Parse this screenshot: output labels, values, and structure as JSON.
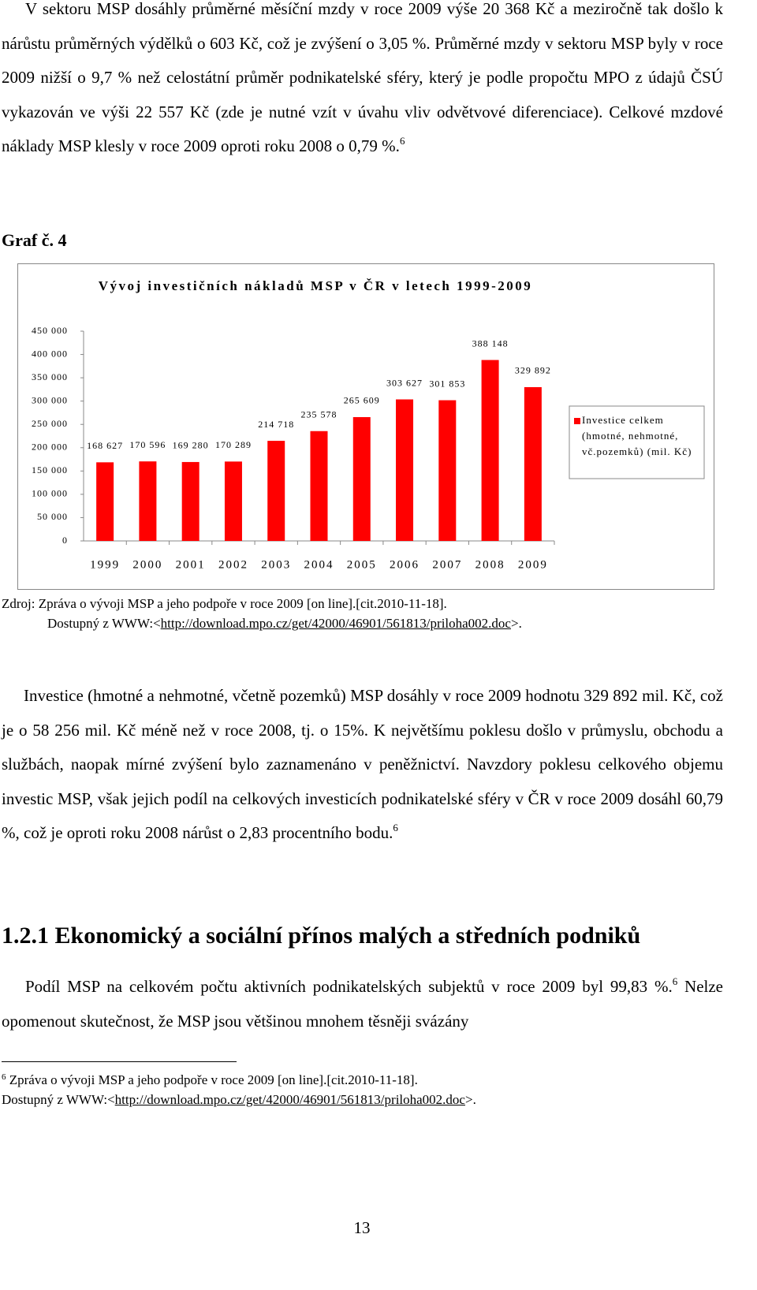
{
  "p1": {
    "text": "V sektoru MSP dosáhly průměrné měsíční mzdy v roce 2009 výše 20 368 Kč a meziročně tak došlo k nárůstu průměrných výdělků o 603 Kč, což je zvýšení o 3,05 %. Průměrné mzdy v sektoru MSP byly v roce 2009 nižší o 9,7 % než celostátní průměr podnikatelské sféry, který je podle propočtu MPO z údajů ČSÚ vykazován ve výši 22 557 Kč (zde je nutné vzít v úvahu vliv odvětvové diferenciace). Celkové mzdové náklady MSP klesly v roce 2009 oproti roku 2008 o 0,79 %.",
    "sup": "6"
  },
  "figure_label": "Graf č. 4",
  "chart_data": {
    "type": "bar",
    "title": "Vývoj investičních nákladů MSP v ČR v letech 1999-2009",
    "categories": [
      "1999",
      "2000",
      "2001",
      "2002",
      "2003",
      "2004",
      "2005",
      "2006",
      "2007",
      "2008",
      "2009"
    ],
    "series": [
      {
        "name": "Investice celkem (hmotné, nehmotné, vč.pozemků) (mil. Kč)",
        "color": "#ff0000",
        "values": [
          168627,
          170596,
          169280,
          170289,
          214718,
          235578,
          265609,
          303627,
          301853,
          388148,
          329892
        ],
        "value_labels": [
          "168 627",
          "170 596",
          "169 280",
          "170 289",
          "214 718",
          "235 578",
          "265 609",
          "303 627",
          "301 853",
          "388 148",
          "329 892"
        ]
      }
    ],
    "ylim": [
      0,
      450000
    ],
    "yticks": [
      0,
      {
        "value": 50000,
        "label": "50 000"
      },
      {
        "value": 100000,
        "label": "100 000"
      },
      {
        "value": 150000,
        "label": "150 000"
      },
      {
        "value": 200000,
        "label": "200 000"
      },
      {
        "value": 250000,
        "label": "250 000"
      },
      {
        "value": 300000,
        "label": "300 000"
      },
      {
        "value": 350000,
        "label": "350 000"
      },
      {
        "value": 400000,
        "label": "400 000"
      },
      {
        "value": 450000,
        "label": "450 000"
      }
    ],
    "legend": "right"
  },
  "source": {
    "line1": "Zdroj: Zpráva o vývoji MSP a jeho podpoře v roce 2009 [on line].[cit.2010-11-18].",
    "line2_pre": "Dostupný z WWW:<",
    "link": "http://download.mpo.cz/get/42000/46901/561813/priloha002.doc",
    "line2_post": ">."
  },
  "p2": {
    "text": "Investice (hmotné a nehmotné, včetně pozemků) MSP dosáhly v roce 2009 hodnotu 329 892 mil. Kč, což je o 58 256 mil. Kč méně než v roce 2008, tj. o 15%. K největšímu poklesu došlo v průmyslu, obchodu a službách, naopak mírné zvýšení bylo zaznamenáno v peněžnictví. Navzdory poklesu celkového objemu investic MSP, však jejich podíl na celkových investicích podnikatelské sféry v ČR v roce 2009 dosáhl 60,79 %, což je oproti roku 2008 nárůst o 2,83 procentního bodu.",
    "sup": "6"
  },
  "heading": "1.2.1 Ekonomický a sociální přínos malých a středních podniků",
  "p3": {
    "text1": "Podíl MSP na celkovém počtu aktivních podnikatelských subjektů v roce 2009 byl 99,83 %.",
    "sup": "6",
    "text2": " Nelze opomenout skutečnost, že MSP jsou většinou mnohem těsněji svázány"
  },
  "footnote": {
    "sup": "6",
    "line1": " Zpráva o vývoji MSP a jeho podpoře v roce 2009 [on line].[cit.2010-11-18].",
    "line2_pre": "Dostupný z WWW:<",
    "link": "http://download.mpo.cz/get/42000/46901/561813/priloha002.doc",
    "line2_post": ">."
  },
  "page_number": "13"
}
